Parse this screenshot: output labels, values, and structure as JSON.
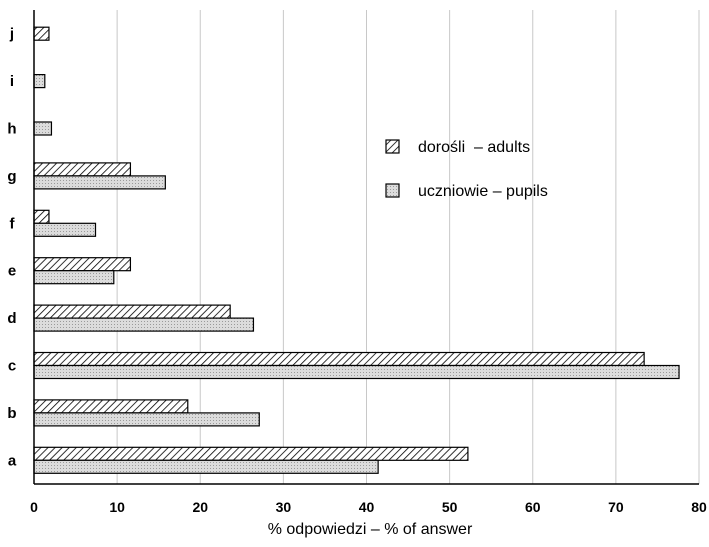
{
  "chart_data": {
    "type": "bar",
    "orientation": "horizontal",
    "categories": [
      "a",
      "b",
      "c",
      "d",
      "e",
      "f",
      "g",
      "h",
      "i",
      "j"
    ],
    "series": [
      {
        "name": "dorośli  – adults",
        "values": [
          52.2,
          18.5,
          73.4,
          23.6,
          11.6,
          1.8,
          11.6,
          null,
          null,
          1.8
        ],
        "color": "#ffffff",
        "pattern": "diagonal-hatch"
      },
      {
        "name": "uczniowie – pupils",
        "values": [
          41.4,
          27.1,
          77.6,
          26.4,
          9.6,
          7.4,
          15.8,
          2.1,
          1.3,
          null
        ],
        "color": "#d6d6d6",
        "pattern": "light-dots"
      }
    ],
    "xlabel": "% odpowiedzi – % of answer",
    "ylabel": "",
    "xlim": [
      0,
      80
    ],
    "xticks": [
      "0",
      "10",
      "20",
      "30",
      "40",
      "50",
      "60",
      "70",
      "80"
    ],
    "grid": true,
    "legend_position": "right, inside plot"
  }
}
